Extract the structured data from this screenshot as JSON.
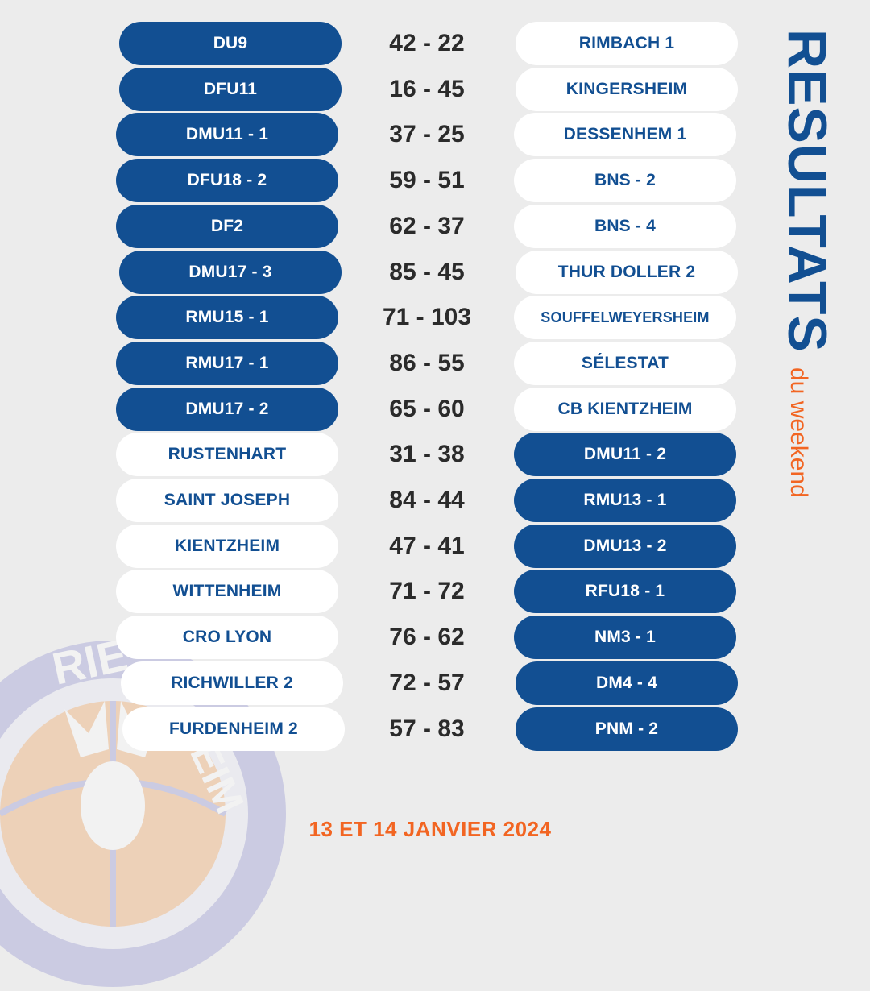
{
  "header": {
    "title": "RESULTATS",
    "subtitle": "du weekend",
    "date": "13 ET 14 JANVIER 2024"
  },
  "colors": {
    "primary_blue": "#124f92",
    "accent_orange": "#f26522",
    "background": "#ececec",
    "white": "#ffffff"
  },
  "matches": [
    {
      "home": "DU9",
      "score": "42 - 22",
      "away": "RIMBACH 1",
      "home_style": "dark",
      "away_style": "light"
    },
    {
      "home": "DFU11",
      "score": "16 - 45",
      "away": "KINGERSHEIM",
      "home_style": "dark",
      "away_style": "light"
    },
    {
      "home": "DMU11 - 1",
      "score": "37 - 25",
      "away": "DESSENHEM 1",
      "home_style": "dark",
      "away_style": "light"
    },
    {
      "home": "DFU18 - 2",
      "score": "59 - 51",
      "away": "BNS - 2",
      "home_style": "dark",
      "away_style": "light"
    },
    {
      "home": "DF2",
      "score": "62 - 37",
      "away": "BNS - 4",
      "home_style": "dark",
      "away_style": "light"
    },
    {
      "home": "DMU17 - 3",
      "score": "85 - 45",
      "away": "THUR DOLLER 2",
      "home_style": "dark",
      "away_style": "light"
    },
    {
      "home": "RMU15 - 1",
      "score": "71 - 103",
      "away": "SOUFFELWEYERSHEIM",
      "home_style": "dark",
      "away_style": "light"
    },
    {
      "home": "RMU17 - 1",
      "score": "86 - 55",
      "away": "SÉLESTAT",
      "home_style": "dark",
      "away_style": "light"
    },
    {
      "home": "DMU17 - 2",
      "score": "65 - 60",
      "away": "CB KIENTZHEIM",
      "home_style": "dark",
      "away_style": "light"
    },
    {
      "home": "RUSTENHART",
      "score": "31 - 38",
      "away": "DMU11 - 2",
      "home_style": "light",
      "away_style": "dark"
    },
    {
      "home": "SAINT JOSEPH",
      "score": "84 - 44",
      "away": "RMU13 - 1",
      "home_style": "light",
      "away_style": "dark"
    },
    {
      "home": "KIENTZHEIM",
      "score": "47 - 41",
      "away": "DMU13 - 2",
      "home_style": "light",
      "away_style": "dark"
    },
    {
      "home": "WITTENHEIM",
      "score": "71 - 72",
      "away": "RFU18 - 1",
      "home_style": "light",
      "away_style": "dark"
    },
    {
      "home": "CRO LYON",
      "score": "76 - 62",
      "away": "NM3 - 1",
      "home_style": "light",
      "away_style": "dark"
    },
    {
      "home": "RICHWILLER 2",
      "score": "72 - 57",
      "away": "DM4 - 4",
      "home_style": "light",
      "away_style": "dark"
    },
    {
      "home": "FURDENHEIM 2",
      "score": "57 - 83",
      "away": "PNM - 2",
      "home_style": "light",
      "away_style": "dark"
    }
  ],
  "logo": {
    "text_top": "RIE",
    "text_side": "HEIM",
    "icon": "basketball-deer-logo"
  }
}
